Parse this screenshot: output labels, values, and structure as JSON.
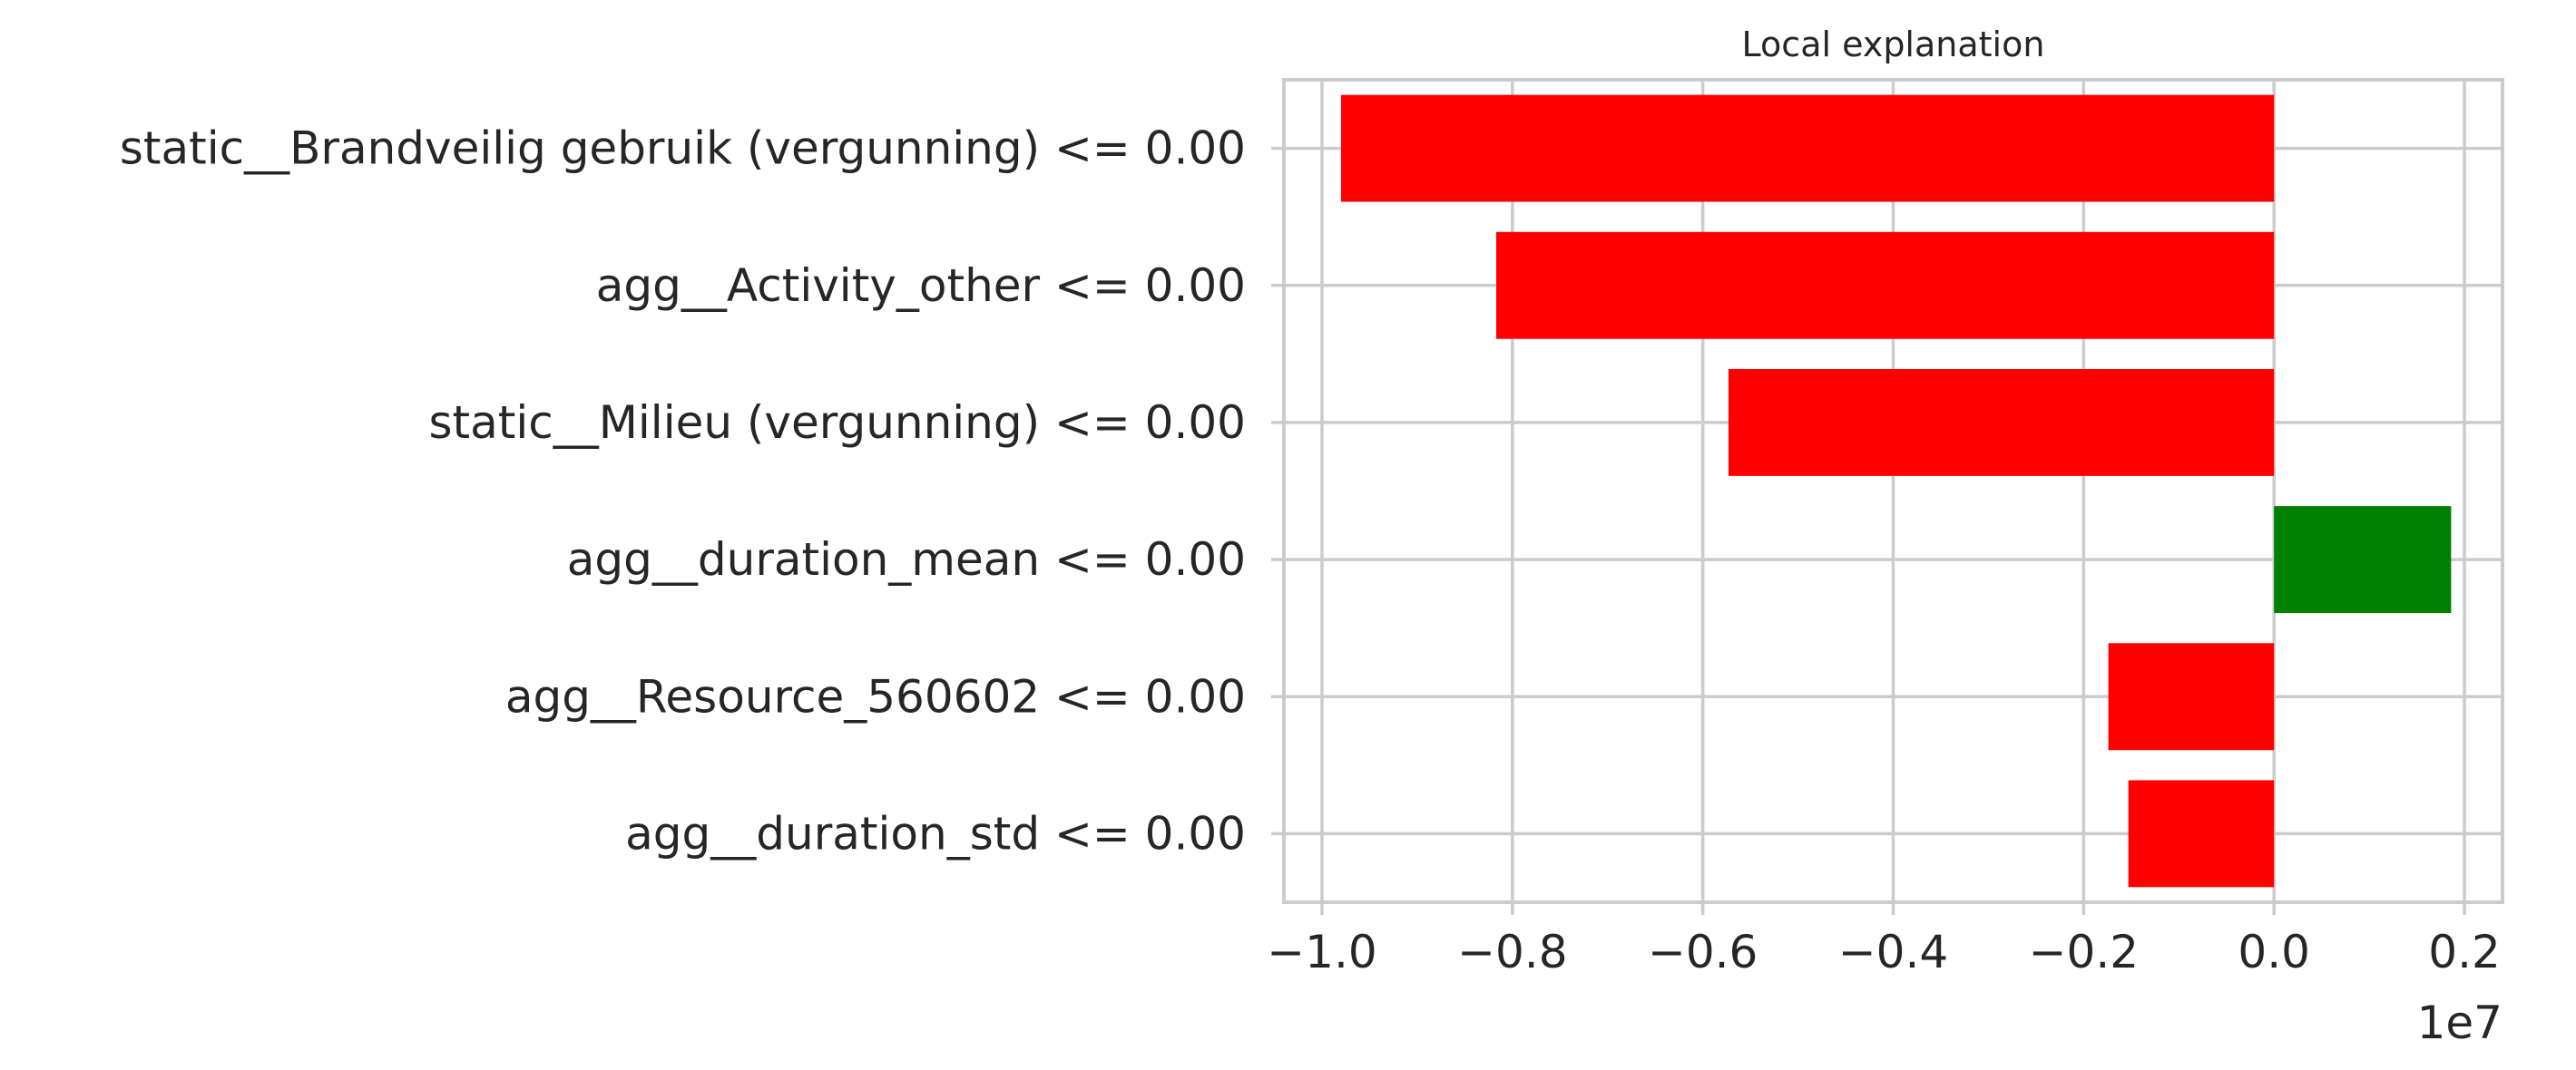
{
  "chart_data": {
    "type": "bar",
    "orientation": "horizontal",
    "title": "Local explanation",
    "xlabel": "",
    "ylabel": "",
    "x_offset_label": "1e7",
    "xlim": [
      -1.04,
      0.24
    ],
    "xticks": [
      -1.0,
      -0.8,
      -0.6,
      -0.4,
      -0.2,
      0.0,
      0.2
    ],
    "xtick_labels": [
      "−1.0",
      "−0.8",
      "−0.6",
      "−0.4",
      "−0.2",
      "0.0",
      "0.2"
    ],
    "grid": true,
    "categories": [
      "static__Brandveilig gebruik (vergunning) <= 0.00",
      "agg__Activity_other <= 0.00",
      "static__Milieu (vergunning) <= 0.00",
      "agg__duration_mean <= 0.00",
      "agg__Resource_560602 <= 0.00",
      "agg__duration_std <= 0.00"
    ],
    "values": [
      -9800000,
      -8170000,
      -5730000,
      1860000,
      -1740000,
      -1530000
    ],
    "colors": {
      "negative": "#ff0000",
      "positive": "#008000"
    }
  }
}
